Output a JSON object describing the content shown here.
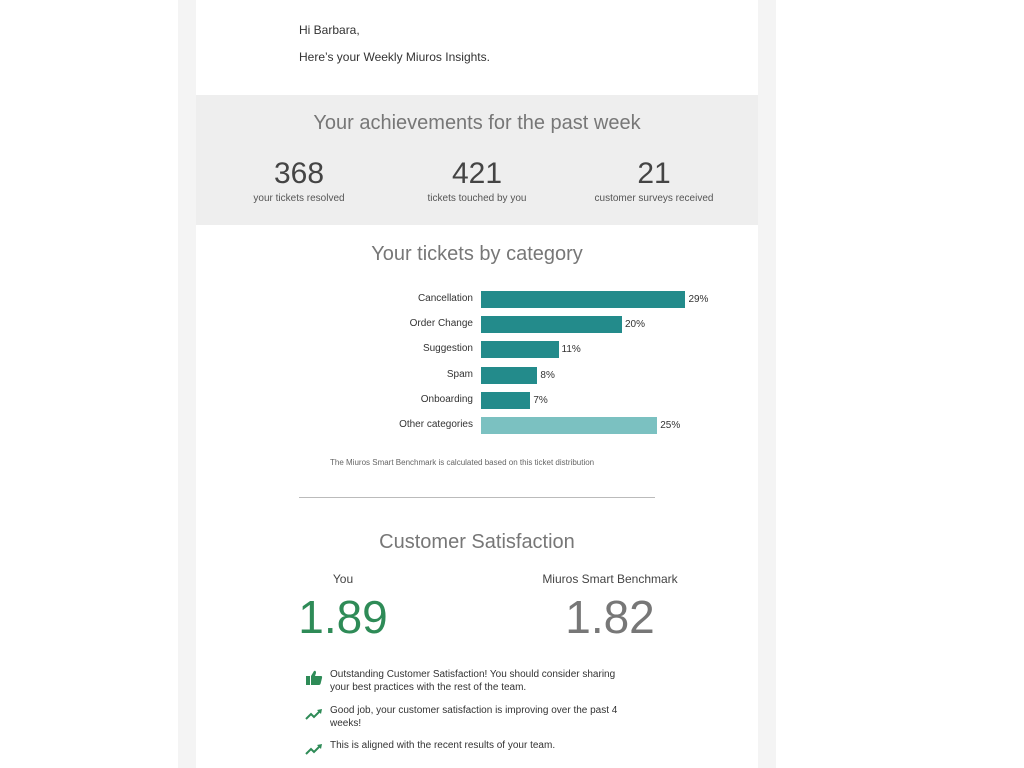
{
  "email": {
    "greeting": "Hi Barbara,",
    "intro": "Here’s your Weekly Miuros Insights."
  },
  "achievements": {
    "title": "Your achievements for the past week",
    "stats": [
      {
        "value": "368",
        "label": "your tickets resolved"
      },
      {
        "value": "421",
        "label": "tickets touched by you"
      },
      {
        "value": "21",
        "label": "customer surveys received"
      }
    ]
  },
  "categories": {
    "title": "Your tickets by category",
    "note": "The Miuros Smart Benchmark is calculated based on this ticket distribution"
  },
  "chart_data": {
    "type": "bar",
    "orientation": "horizontal",
    "title": "Your tickets by category",
    "categories": [
      "Cancellation",
      "Order Change",
      "Suggestion",
      "Spam",
      "Onboarding",
      "Other categories"
    ],
    "values": [
      29,
      20,
      11,
      8,
      7,
      25
    ],
    "value_labels": [
      "29%",
      "20%",
      "11%",
      "8%",
      "7%",
      "25%"
    ],
    "colors": [
      "#238b8b",
      "#238b8b",
      "#238b8b",
      "#238b8b",
      "#238b8b",
      "#7bc1c1"
    ],
    "unit": "%"
  },
  "satisfaction": {
    "title": "Customer Satisfaction",
    "you_label": "You",
    "you_value": "1.89",
    "you_color": "#2e8b57",
    "benchmark_label": "Miuros Smart Benchmark",
    "benchmark_value": "1.82",
    "benchmark_color": "#777777"
  },
  "feedback": [
    {
      "icon": "thumbs-up-icon",
      "text": "Outstanding Customer Satisfaction! You should consider sharing your best practices with the rest of the team."
    },
    {
      "icon": "trending-up-icon",
      "text": "Good job, your customer satisfaction is improving over the past 4 weeks!"
    },
    {
      "icon": "trending-up-icon",
      "text": "This is aligned with the recent results of your team."
    }
  ]
}
